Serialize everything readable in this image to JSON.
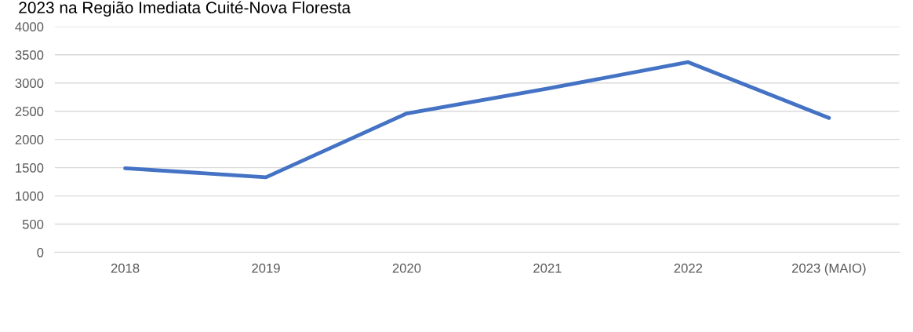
{
  "chart_data": {
    "type": "line",
    "title": "2023 na Região Imediata Cuité-Nova Floresta",
    "categories": [
      "2018",
      "2019",
      "2020",
      "2021",
      "2022",
      "2023 (MAIO)"
    ],
    "series": [
      {
        "color": "#4472c4",
        "values": [
          1490,
          1330,
          2460,
          2900,
          3370,
          2380
        ]
      }
    ],
    "ylim": [
      0,
      4000
    ],
    "yticks": [
      0,
      500,
      1000,
      1500,
      2000,
      2500,
      3000,
      3500,
      4000
    ],
    "grid": "y",
    "legend": false,
    "marker": "none",
    "line_style": "solid"
  }
}
